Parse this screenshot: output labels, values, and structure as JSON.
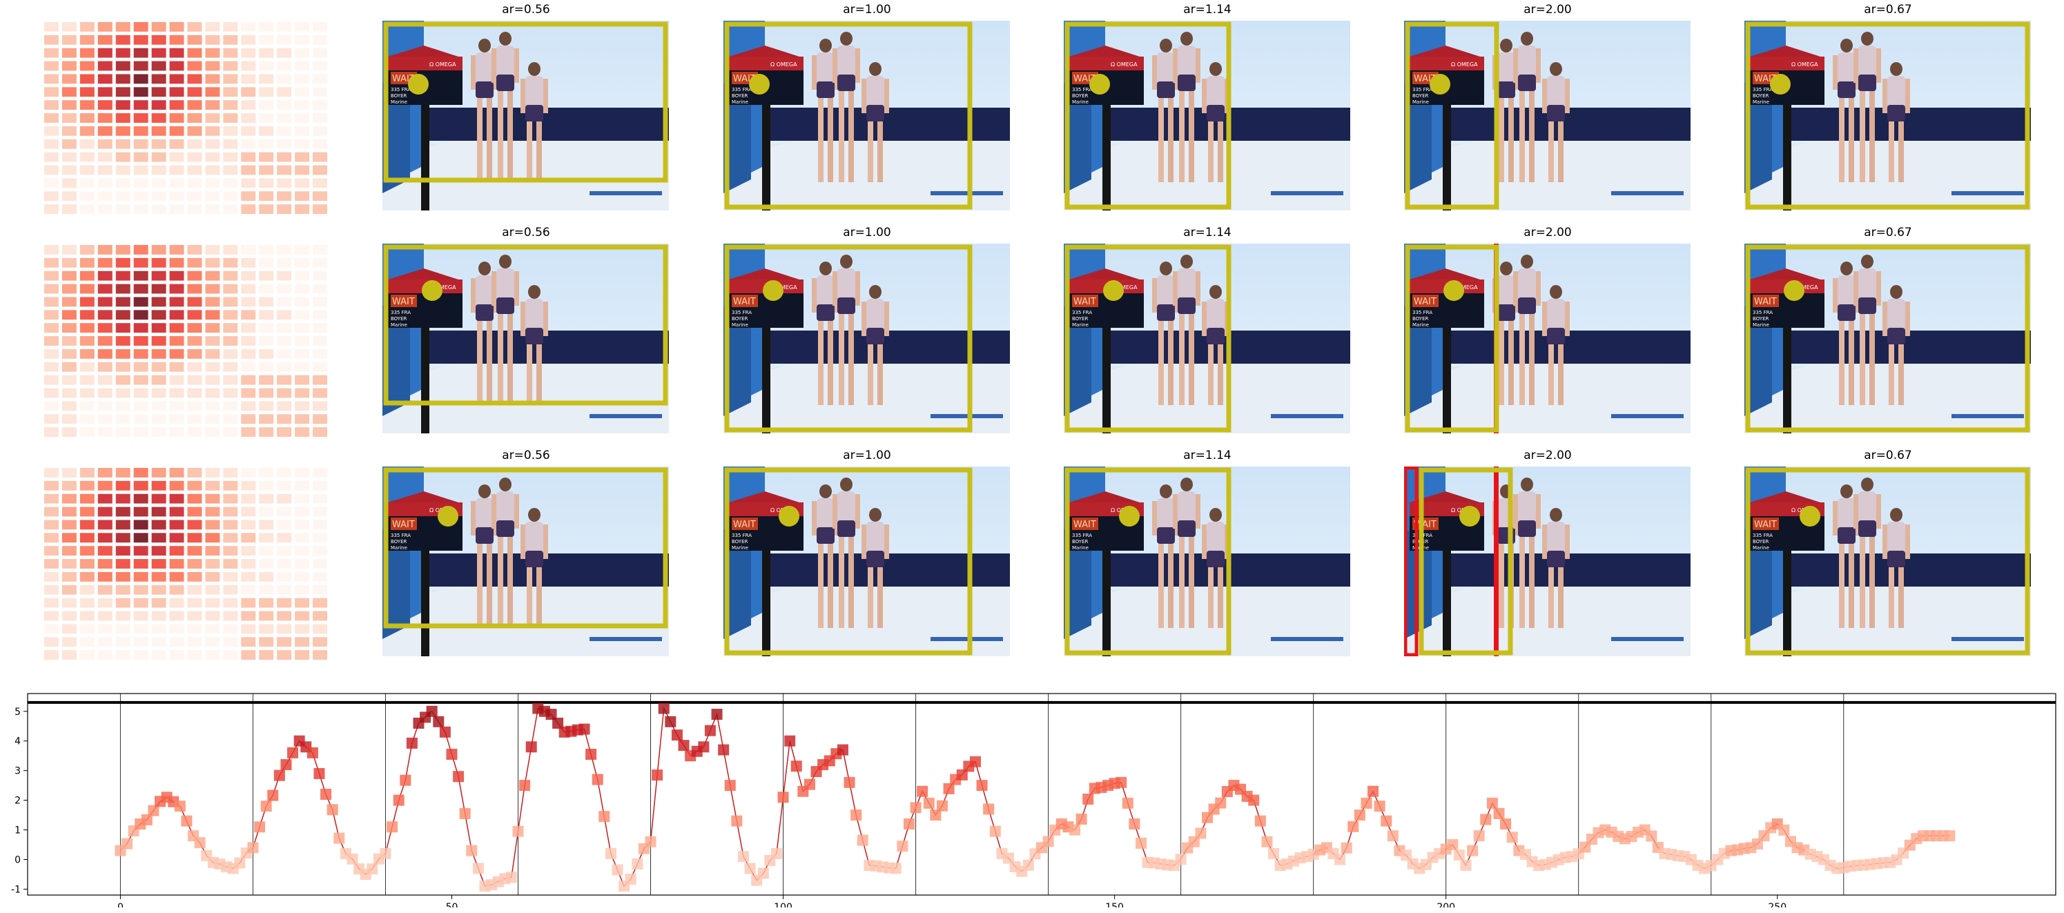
{
  "grid": {
    "rows": [
      {
        "frames": [
          {
            "ar_label": "ar=0.56",
            "fill_colour": "#c8be1a"
          },
          {
            "ar_label": "ar=1.00",
            "fill_colour": "#c8be1a"
          },
          {
            "ar_label": "ar=1.14",
            "fill_colour": "#c8be1a"
          },
          {
            "ar_label": "ar=2.00",
            "fill_colour": "#c8be1a"
          },
          {
            "ar_label": "ar=0.67",
            "fill_colour": "#c8be1a"
          }
        ]
      },
      {
        "frames": [
          {
            "ar_label": "ar=0.56",
            "fill_colour": "#c8be1a"
          },
          {
            "ar_label": "ar=1.00",
            "fill_colour": "#c8be1a"
          },
          {
            "ar_label": "ar=1.14",
            "fill_colour": "#c8be1a"
          },
          {
            "ar_label": "ar=2.00",
            "fill_colour": "#c8be1a"
          },
          {
            "ar_label": "ar=0.67",
            "fill_colour": "#c8be1a"
          }
        ]
      },
      {
        "frames": [
          {
            "ar_label": "ar=0.56",
            "fill_colour": "#c8be1a"
          },
          {
            "ar_label": "ar=1.00",
            "fill_colour": "#c8be1a"
          },
          {
            "ar_label": "ar=1.14",
            "fill_colour": "#c8be1a"
          },
          {
            "ar_label": "ar=2.00",
            "fill_colour": "#c8be1a"
          },
          {
            "ar_label": "ar=0.67",
            "fill_colour": "#c8be1a"
          }
        ]
      }
    ],
    "scoreboard_text": {
      "wait": "WAIT",
      "omega": "Ω OMEGA",
      "line1": "335 FRA",
      "line2": "BOYER",
      "line3": "Marine"
    },
    "colors": {
      "box": "#c8be1a",
      "box_alt": "#e8121a",
      "marker": "#c8be1a"
    }
  },
  "chart_data": {
    "type": "scatter",
    "xlim": [
      -14,
      292
    ],
    "ylim": [
      -1.2,
      5.6
    ],
    "x_ticks": [
      0,
      50,
      100,
      150,
      200,
      250
    ],
    "y_ticks": [
      -1,
      0,
      1,
      2,
      3,
      4,
      5
    ],
    "vertical_lines": [
      0,
      20,
      40,
      60,
      80,
      100,
      120,
      140,
      160,
      180,
      200,
      220,
      240,
      260
    ],
    "horizontal_line": 5.3,
    "series": [
      {
        "color": "#cb1c1d",
        "anchors": [
          [
            0,
            0.3
          ],
          [
            3,
            1.2
          ],
          [
            7,
            2.1
          ],
          [
            9,
            1.8
          ],
          [
            11,
            0.8
          ],
          [
            14,
            -0.1
          ],
          [
            17,
            -0.3
          ],
          [
            20,
            0.4
          ],
          [
            22,
            1.8
          ],
          [
            25,
            3.2
          ],
          [
            27,
            4.0
          ],
          [
            29,
            3.6
          ],
          [
            31,
            2.2
          ],
          [
            34,
            0.2
          ],
          [
            37,
            -0.5
          ],
          [
            40,
            0.2
          ],
          [
            42,
            2.0
          ],
          [
            45,
            4.6
          ],
          [
            47,
            5.0
          ],
          [
            49,
            4.3
          ],
          [
            51,
            2.8
          ],
          [
            53,
            0.3
          ],
          [
            55,
            -0.9
          ],
          [
            59,
            -0.6
          ],
          [
            61,
            2.5
          ],
          [
            63,
            5.1
          ],
          [
            65,
            4.9
          ],
          [
            67,
            4.3
          ],
          [
            70,
            4.4
          ],
          [
            72,
            2.7
          ],
          [
            74,
            0.2
          ],
          [
            76,
            -0.9
          ],
          [
            80,
            0.6
          ],
          [
            82,
            5.1
          ],
          [
            84,
            4.2
          ],
          [
            86,
            3.5
          ],
          [
            88,
            3.8
          ],
          [
            90,
            4.9
          ],
          [
            92,
            2.5
          ],
          [
            94,
            0.1
          ],
          [
            96,
            -0.7
          ],
          [
            99,
            0.2
          ],
          [
            101,
            4.0
          ],
          [
            103,
            2.3
          ],
          [
            106,
            3.2
          ],
          [
            109,
            3.7
          ],
          [
            111,
            1.5
          ],
          [
            113,
            -0.2
          ],
          [
            117,
            -0.3
          ],
          [
            119,
            1.2
          ],
          [
            121,
            2.3
          ],
          [
            123,
            1.5
          ],
          [
            126,
            2.7
          ],
          [
            129,
            3.3
          ],
          [
            131,
            1.7
          ],
          [
            133,
            0.2
          ],
          [
            136,
            -0.4
          ],
          [
            139,
            0.4
          ],
          [
            142,
            1.2
          ],
          [
            144,
            1.0
          ],
          [
            147,
            2.4
          ],
          [
            151,
            2.6
          ],
          [
            153,
            1.2
          ],
          [
            155,
            -0.1
          ],
          [
            159,
            -0.2
          ],
          [
            162,
            0.6
          ],
          [
            165,
            1.7
          ],
          [
            168,
            2.5
          ],
          [
            171,
            2.0
          ],
          [
            173,
            0.6
          ],
          [
            175,
            -0.2
          ],
          [
            179,
            0.1
          ],
          [
            182,
            0.4
          ],
          [
            184,
            0.0
          ],
          [
            187,
            1.5
          ],
          [
            189,
            2.3
          ],
          [
            191,
            1.3
          ],
          [
            193,
            0.3
          ],
          [
            196,
            -0.3
          ],
          [
            199,
            0.2
          ],
          [
            201,
            0.5
          ],
          [
            203,
            -0.2
          ],
          [
            205,
            0.8
          ],
          [
            207,
            1.9
          ],
          [
            209,
            1.2
          ],
          [
            211,
            0.3
          ],
          [
            214,
            -0.2
          ],
          [
            219,
            0.1
          ],
          [
            224,
            1.0
          ],
          [
            227,
            0.7
          ],
          [
            230,
            1.0
          ],
          [
            233,
            0.2
          ],
          [
            236,
            0.1
          ],
          [
            239,
            -0.3
          ],
          [
            243,
            0.3
          ],
          [
            246,
            0.4
          ],
          [
            250,
            1.2
          ],
          [
            253,
            0.4
          ],
          [
            256,
            0.1
          ],
          [
            259,
            -0.3
          ],
          [
            262,
            -0.2
          ],
          [
            267,
            -0.1
          ],
          [
            272,
            0.8
          ],
          [
            276,
            0.8
          ]
        ]
      }
    ]
  }
}
